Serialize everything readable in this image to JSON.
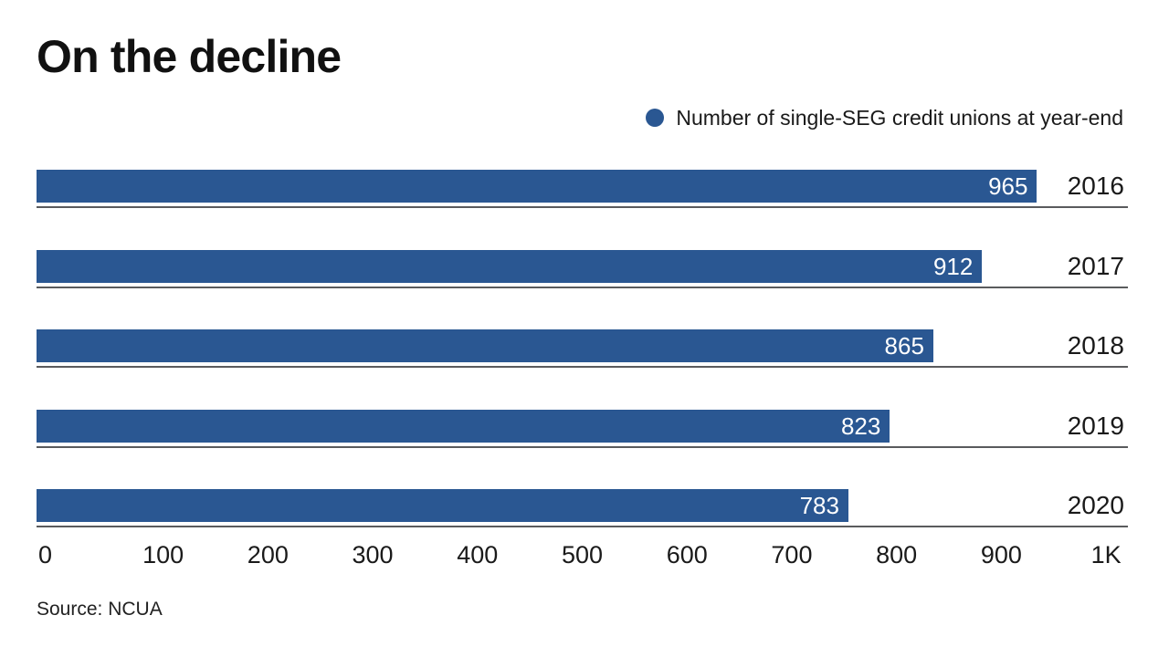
{
  "title": "On the decline",
  "legend": {
    "label": "Number of single-SEG credit unions at year-end"
  },
  "source_note": "Source: NCUA",
  "colors": {
    "bar": "#2a5792",
    "rule": "#5a5b5d",
    "text": "#1a1a1a",
    "value_label": "#ffffff"
  },
  "chart_data": {
    "type": "bar",
    "orientation": "horizontal",
    "title": "On the decline",
    "series_label": "Number of single-SEG credit unions at year-end",
    "categories": [
      "2016",
      "2017",
      "2018",
      "2019",
      "2020"
    ],
    "values": [
      965,
      912,
      865,
      823,
      783
    ],
    "xlim": [
      0,
      1000
    ],
    "x_ticks": [
      "0",
      "100",
      "200",
      "300",
      "400",
      "500",
      "600",
      "700",
      "800",
      "900",
      "1K"
    ],
    "x_tick_values": [
      0,
      100,
      200,
      300,
      400,
      500,
      600,
      700,
      800,
      900,
      1000
    ],
    "grid": false,
    "legend_position": "top-right",
    "value_labels": "inside-end",
    "source": "Source: NCUA"
  }
}
